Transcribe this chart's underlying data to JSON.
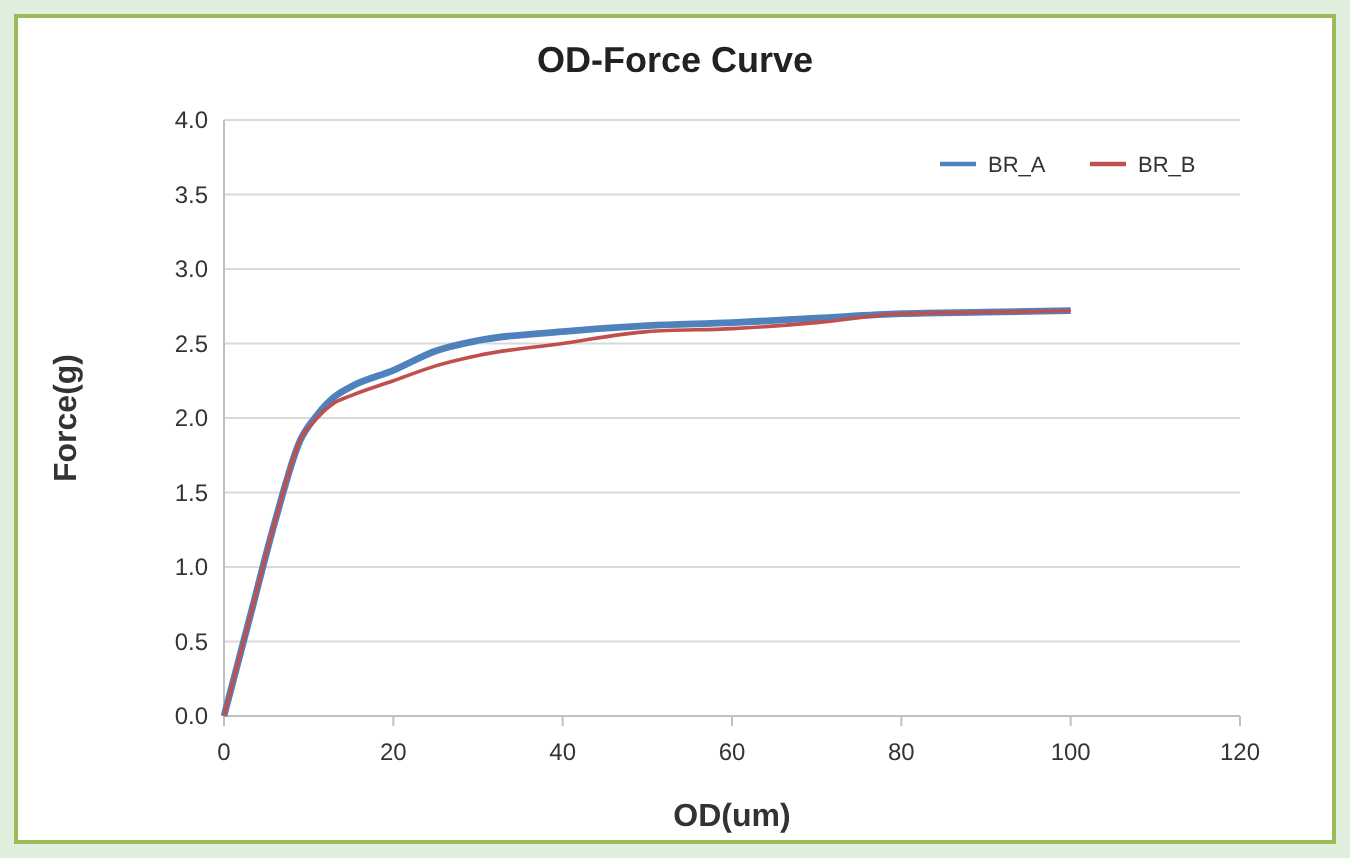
{
  "chart_data": {
    "type": "line",
    "title": "OD-Force Curve",
    "xlabel": "OD(um)",
    "ylabel": "Force(g)",
    "xlim": [
      0,
      120
    ],
    "xticks": [
      0,
      20,
      40,
      60,
      80,
      100,
      120
    ],
    "ylim": [
      0,
      4
    ],
    "yticks": [
      {
        "value": 0,
        "label": "0.0"
      },
      {
        "value": 0.5,
        "label": "0.5"
      },
      {
        "value": 1,
        "label": "1.0"
      },
      {
        "value": 1.5,
        "label": "1.5"
      },
      {
        "value": 2,
        "label": "2.0"
      },
      {
        "value": 2.5,
        "label": "2.5"
      },
      {
        "value": 3,
        "label": "3.0"
      },
      {
        "value": 3.5,
        "label": "3.5"
      },
      {
        "value": 4,
        "label": "4.0"
      }
    ],
    "grid": "y",
    "legend": "top right",
    "marker": "none",
    "line_style": "solid",
    "x": [
      0,
      3,
      6,
      9,
      11,
      13,
      15,
      20,
      25,
      30,
      40,
      50,
      60,
      70,
      80,
      90,
      100
    ],
    "series": [
      {
        "name": "BR_A",
        "color": "#4f81bd",
        "values": [
          0,
          0.65,
          1.3,
          1.85,
          2.02,
          2.14,
          2.21,
          2.32,
          2.45,
          2.52,
          2.58,
          2.62,
          2.64,
          2.67,
          2.7,
          2.71,
          2.72
        ]
      },
      {
        "name": "BR_B",
        "color": "#c0504d",
        "values": [
          0,
          0.65,
          1.3,
          1.85,
          2.0,
          2.1,
          2.15,
          2.25,
          2.35,
          2.42,
          2.5,
          2.58,
          2.6,
          2.64,
          2.7,
          2.71,
          2.72
        ]
      }
    ]
  }
}
